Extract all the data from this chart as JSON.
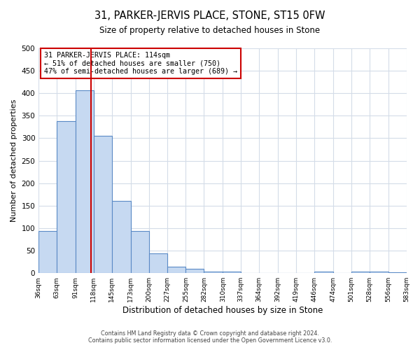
{
  "title": "31, PARKER-JERVIS PLACE, STONE, ST15 0FW",
  "subtitle": "Size of property relative to detached houses in Stone",
  "xlabel": "Distribution of detached houses by size in Stone",
  "ylabel": "Number of detached properties",
  "bar_values": [
    93,
    338,
    407,
    305,
    160,
    93,
    44,
    14,
    9,
    4,
    3,
    1,
    0,
    0,
    0,
    4,
    0,
    4,
    4,
    2
  ],
  "bin_edges": [
    36,
    63,
    91,
    118,
    145,
    173,
    200,
    227,
    255,
    282,
    310,
    337,
    364,
    392,
    419,
    446,
    474,
    501,
    528,
    556,
    583
  ],
  "tick_labels": [
    "36sqm",
    "63sqm",
    "91sqm",
    "118sqm",
    "145sqm",
    "173sqm",
    "200sqm",
    "227sqm",
    "255sqm",
    "282sqm",
    "310sqm",
    "337sqm",
    "364sqm",
    "392sqm",
    "419sqm",
    "446sqm",
    "474sqm",
    "501sqm",
    "528sqm",
    "556sqm",
    "583sqm"
  ],
  "bar_color": "#c6d9f1",
  "bar_edge_color": "#5a8ac6",
  "vline_x": 114,
  "vline_color": "#cc0000",
  "ylim": [
    0,
    500
  ],
  "yticks": [
    0,
    50,
    100,
    150,
    200,
    250,
    300,
    350,
    400,
    450,
    500
  ],
  "annotation_text": "31 PARKER-JERVIS PLACE: 114sqm\n← 51% of detached houses are smaller (750)\n47% of semi-detached houses are larger (689) →",
  "annotation_box_color": "#cc0000",
  "footer_line1": "Contains HM Land Registry data © Crown copyright and database right 2024.",
  "footer_line2": "Contains public sector information licensed under the Open Government Licence v3.0.",
  "background_color": "#ffffff",
  "grid_color": "#d4dce8"
}
